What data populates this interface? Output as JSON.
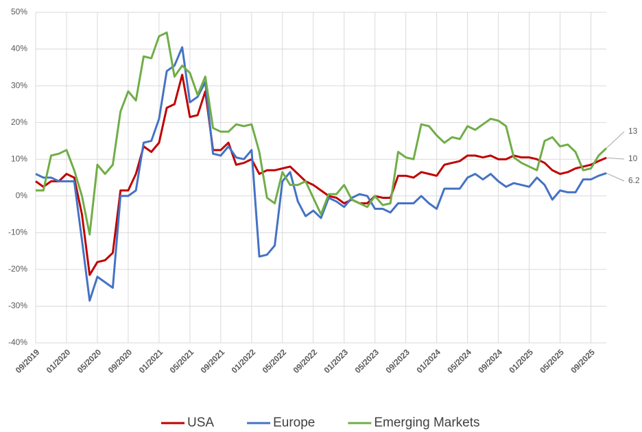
{
  "chart_data": {
    "type": "line",
    "categories": [
      "09/2019",
      null,
      null,
      null,
      "01/2020",
      null,
      null,
      null,
      "05/2020",
      null,
      null,
      null,
      "09/2020",
      null,
      null,
      null,
      "01/2021",
      null,
      null,
      null,
      "05/2021",
      null,
      null,
      null,
      "09/2021",
      null,
      null,
      null,
      "01/2022",
      null,
      null,
      null,
      "05/2022",
      null,
      null,
      null,
      "09/2022",
      null,
      null,
      null,
      "01/2023",
      null,
      null,
      null,
      "05/2023",
      null,
      null,
      null,
      "09/2023",
      null,
      null,
      null,
      "01/2024",
      null,
      null,
      null,
      "05/2024",
      null,
      null,
      null,
      "09/2024",
      null,
      null,
      null,
      "01/2025",
      null,
      null,
      null,
      "05/2025",
      null,
      null,
      null,
      "09/2025",
      null,
      null
    ],
    "series": [
      {
        "name": "USA",
        "color": "#c00000",
        "values": [
          4,
          2.5,
          4,
          4,
          6,
          5,
          -5,
          -21.5,
          -18,
          -17.5,
          -15.5,
          1.5,
          1.5,
          6,
          13.5,
          12,
          14.5,
          24,
          25,
          33,
          21.5,
          22,
          28.5,
          12.5,
          12.5,
          14.5,
          8.5,
          9,
          10,
          6,
          7,
          7,
          7.5,
          8,
          6,
          4,
          3,
          1.5,
          0,
          -0.5,
          -2,
          -1,
          -2,
          -2,
          0,
          -0.5,
          -0.5,
          5.5,
          5.5,
          5,
          6.5,
          6,
          5.5,
          8.5,
          9,
          9.5,
          11,
          11,
          10.5,
          11,
          10,
          10,
          11,
          10.5,
          10.5,
          10,
          9,
          7,
          6,
          6.5,
          7.5,
          8,
          8.5,
          9.5,
          10.4
        ],
        "end_label": "10"
      },
      {
        "name": "Europe",
        "color": "#4472c4",
        "values": [
          6,
          5,
          5,
          4,
          4,
          4,
          -12,
          -28.5,
          -22,
          -23.5,
          -25,
          0,
          0,
          1.5,
          14.5,
          15,
          21,
          34,
          35.5,
          40.5,
          25.5,
          27,
          31,
          11.5,
          11,
          13.5,
          10.5,
          10,
          12.5,
          -16.5,
          -16,
          -13.5,
          4,
          6.5,
          -1.5,
          -5.5,
          -4,
          -6,
          -0.5,
          -1.5,
          -3,
          -0.5,
          0.5,
          0,
          -3.5,
          -3.5,
          -4.5,
          -2,
          -2,
          -2,
          0,
          -2,
          -3.5,
          2,
          2,
          2,
          5,
          6,
          4.5,
          6,
          4,
          2.5,
          3.5,
          3,
          2.5,
          5,
          3,
          -1,
          1.5,
          1,
          1,
          4.5,
          4.5,
          5.5,
          6.2
        ],
        "end_label": "6.2"
      },
      {
        "name": "Emerging Markets",
        "color": "#70ad47",
        "values": [
          1.5,
          1.5,
          11,
          11.5,
          12.5,
          7,
          0,
          -10.5,
          8.5,
          6,
          8.5,
          23,
          28.5,
          26,
          38,
          37.5,
          43.5,
          44.5,
          32.5,
          35.5,
          33.5,
          27.5,
          32.5,
          18.5,
          17.5,
          17.5,
          19.5,
          19,
          19.5,
          12,
          -0.5,
          -2,
          6.5,
          3,
          3,
          4,
          -0.5,
          -5,
          0.5,
          0.5,
          3,
          -1,
          -2,
          -3,
          0,
          -2.5,
          -2,
          12,
          10.5,
          10,
          19.5,
          19,
          16.5,
          14.5,
          16,
          15.5,
          19,
          18,
          19.5,
          21,
          20.5,
          19,
          10.5,
          9,
          8,
          7,
          15,
          16,
          13.5,
          14,
          12,
          7,
          7.5,
          11,
          13
        ],
        "end_label": "13"
      }
    ],
    "ylim": [
      -40,
      50
    ],
    "yticks": [
      {
        "value": -40,
        "label": "-40%"
      },
      {
        "value": -30,
        "label": "-30%"
      },
      {
        "value": -20,
        "label": "-20%"
      },
      {
        "value": -10,
        "label": "-10%"
      },
      {
        "value": 0,
        "label": "0%"
      },
      {
        "value": 10,
        "label": "10%"
      },
      {
        "value": 20,
        "label": "20%"
      },
      {
        "value": 30,
        "label": "30%"
      },
      {
        "value": 40,
        "label": "40%"
      },
      {
        "value": 50,
        "label": "50%"
      }
    ],
    "grid": true,
    "legend": "bottom"
  }
}
